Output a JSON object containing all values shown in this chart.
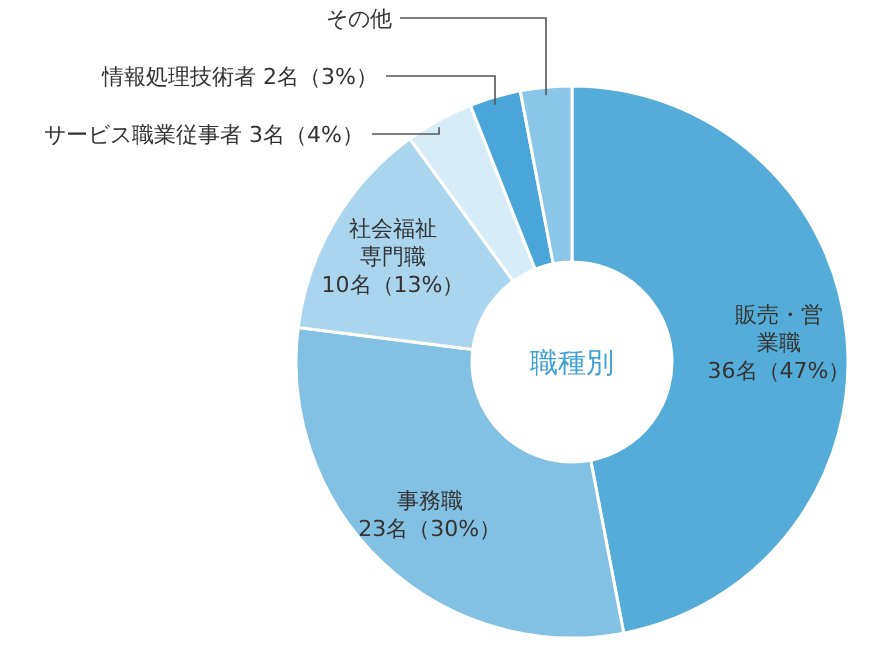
{
  "chart_data": {
    "type": "donut",
    "title": "職種別",
    "categories": [
      "販売・営業職",
      "事務職",
      "社会福祉専門職",
      "サービス職業従事者",
      "情報処理技術者",
      "その他"
    ],
    "values": [
      47,
      30,
      13,
      4,
      3,
      3
    ],
    "value_labels": [
      "36名（47%）",
      "23名（30%）",
      "10名（13%）",
      "3名（4%）",
      "2名（3%）",
      null
    ],
    "colors": [
      "#56acd9",
      "#82c1e4",
      "#a9d5ee",
      "#d8ecf7",
      "#4aa6d8",
      "#8ac6e7"
    ]
  }
}
